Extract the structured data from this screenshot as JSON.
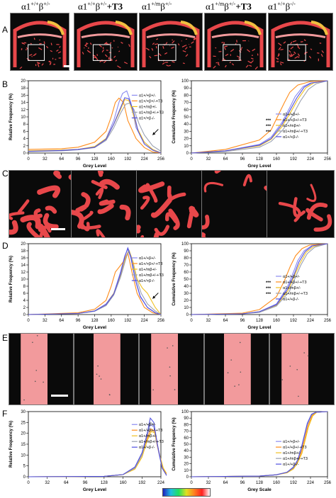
{
  "panel_letters": [
    "A",
    "B",
    "C",
    "D",
    "E",
    "F"
  ],
  "genotype_headers": [
    {
      "base": "α1",
      "sup1": "+/+",
      "mid": "β",
      "sup2": "+/-",
      "suffix": ""
    },
    {
      "base": "α1",
      "sup1": "+/+",
      "mid": "β",
      "sup2": "+/-",
      "suffix": "+T3"
    },
    {
      "base": "α1",
      "sup1": "+/m",
      "mid": "β",
      "sup2": "+/-",
      "suffix": ""
    },
    {
      "base": "α1",
      "sup1": "+/m",
      "mid": "β",
      "sup2": "+/-",
      "suffix": "+T3"
    },
    {
      "base": "α1",
      "sup1": "+/+",
      "mid": "β",
      "sup2": "-/-",
      "suffix": ""
    }
  ],
  "colors": {
    "bone_red": "#e8474a",
    "bone_pink": "#f29a9c",
    "marrow": "#0a0a0a",
    "series": [
      "#8a8af0",
      "#ff8c1a",
      "#f0c020",
      "#9aa0b0",
      "#5050e0"
    ]
  },
  "significance": [
    "***",
    "***",
    "***"
  ],
  "chart_data": [
    {
      "id": "B-left",
      "type": "line",
      "xlabel": "Grey Level",
      "ylabel": "Relative Frequency (%)",
      "ylim": [
        0,
        20
      ],
      "xticks": [
        0,
        32,
        64,
        96,
        128,
        160,
        192,
        224,
        256
      ],
      "yticks": [
        0,
        2,
        4,
        6,
        8,
        10,
        12,
        14,
        16,
        18,
        20
      ],
      "legend": [
        "α1+/+β+/-",
        "α1+/+β+/-+T3",
        "α1+/mβ+/-",
        "α1+/mβ+/-+T3",
        "α1+/+β-/-"
      ],
      "series": [
        {
          "x": [
            0,
            64,
            96,
            128,
            150,
            165,
            175,
            182,
            190,
            198,
            208,
            224,
            240,
            256
          ],
          "y": [
            0.5,
            0.8,
            1,
            1.7,
            4,
            9,
            14,
            16.5,
            17.2,
            14,
            7,
            3,
            1,
            0
          ]
        },
        {
          "x": [
            0,
            64,
            96,
            128,
            150,
            160,
            168,
            175,
            184,
            192,
            208,
            224,
            240,
            256
          ],
          "y": [
            1,
            1.2,
            1.6,
            3,
            6,
            10,
            14,
            15.2,
            14,
            9,
            4,
            1.5,
            0.3,
            0
          ]
        },
        {
          "x": [
            0,
            64,
            96,
            128,
            150,
            165,
            178,
            186,
            194,
            200,
            210,
            224,
            240,
            256
          ],
          "y": [
            0.6,
            0.8,
            1,
            1.8,
            4,
            8,
            12,
            14.8,
            14.5,
            12,
            7,
            3,
            1,
            0
          ]
        },
        {
          "x": [
            0,
            64,
            96,
            128,
            150,
            165,
            178,
            188,
            196,
            204,
            214,
            224,
            240,
            256
          ],
          "y": [
            0.4,
            0.6,
            0.9,
            1.5,
            3.5,
            7,
            11,
            13.5,
            13.8,
            12,
            8,
            5,
            2,
            0.5
          ]
        },
        {
          "x": [
            0,
            64,
            96,
            128,
            150,
            165,
            178,
            186,
            194,
            202,
            212,
            224,
            240,
            256
          ],
          "y": [
            0.5,
            0.7,
            1,
            1.6,
            3.8,
            8,
            12.5,
            15.3,
            15,
            12,
            6,
            2.5,
            0.8,
            0
          ]
        }
      ]
    },
    {
      "id": "B-right",
      "type": "line",
      "xlabel": "Grey Level",
      "ylabel": "Cumulative Frequency (%)",
      "ylim": [
        0,
        100
      ],
      "xticks": [
        0,
        32,
        64,
        96,
        128,
        160,
        192,
        224,
        256
      ],
      "yticks": [
        0,
        10,
        20,
        30,
        40,
        50,
        60,
        70,
        80,
        90,
        100
      ],
      "legend": [
        "α1+/+β+/-",
        "α1+/+β+/-+T3",
        "α1+/mβ+/-",
        "α1+/mβ+/-+T3",
        "α1+/+β-/-"
      ],
      "series": [
        {
          "x": [
            0,
            64,
            128,
            150,
            170,
            185,
            195,
            210,
            224,
            256
          ],
          "y": [
            0,
            3,
            12,
            22,
            42,
            63,
            78,
            92,
            97,
            100
          ]
        },
        {
          "x": [
            0,
            64,
            128,
            150,
            165,
            175,
            185,
            200,
            224,
            256
          ],
          "y": [
            0,
            5,
            18,
            32,
            55,
            70,
            84,
            94,
            99,
            100
          ]
        },
        {
          "x": [
            0,
            64,
            128,
            150,
            170,
            188,
            200,
            215,
            230,
            256
          ],
          "y": [
            0,
            3,
            10,
            19,
            36,
            58,
            74,
            90,
            97,
            100
          ]
        },
        {
          "x": [
            0,
            64,
            128,
            150,
            172,
            192,
            205,
            220,
            235,
            256
          ],
          "y": [
            0,
            2,
            8,
            16,
            32,
            54,
            72,
            88,
            96,
            100
          ]
        },
        {
          "x": [
            0,
            64,
            128,
            150,
            170,
            186,
            198,
            212,
            226,
            256
          ],
          "y": [
            0,
            3,
            11,
            20,
            39,
            60,
            76,
            91,
            97,
            100
          ]
        }
      ]
    },
    {
      "id": "D-left",
      "type": "line",
      "xlabel": "Grey Level",
      "ylabel": "Relative Frequency (%)",
      "ylim": [
        0,
        20
      ],
      "xticks": [
        0,
        32,
        64,
        96,
        128,
        160,
        192,
        224,
        256
      ],
      "yticks": [
        0,
        2,
        4,
        6,
        8,
        10,
        12,
        14,
        16,
        18,
        20
      ],
      "legend": [
        "α1+/+β+/-",
        "α1+/+β+/-+T3",
        "α1+/mβ+/-",
        "α1+/mβ+/-+T3",
        "α1+/+β-/-"
      ],
      "series": [
        {
          "x": [
            0,
            96,
            128,
            150,
            165,
            178,
            186,
            192,
            198,
            206,
            216,
            230,
            245,
            256
          ],
          "y": [
            0,
            0.3,
            1,
            3,
            6,
            12,
            16.5,
            18.5,
            16,
            10,
            5,
            2,
            0.5,
            0
          ]
        },
        {
          "x": [
            0,
            96,
            128,
            150,
            160,
            168,
            176,
            184,
            192,
            200,
            210,
            224,
            240,
            256
          ],
          "y": [
            0,
            0.5,
            1.5,
            4,
            8,
            12,
            13.5,
            15,
            17.5,
            12,
            6,
            2,
            0.5,
            0
          ]
        },
        {
          "x": [
            0,
            96,
            128,
            150,
            165,
            178,
            188,
            195,
            202,
            210,
            220,
            230,
            245,
            256
          ],
          "y": [
            0,
            0.3,
            1,
            2.8,
            6,
            11,
            16,
            18,
            15,
            10,
            7.5,
            6,
            2,
            0
          ]
        },
        {
          "x": [
            0,
            96,
            128,
            150,
            165,
            178,
            188,
            194,
            200,
            208,
            218,
            230,
            245,
            256
          ],
          "y": [
            0,
            0.3,
            0.9,
            2.5,
            5.5,
            10.5,
            15.5,
            18.2,
            15.5,
            10.5,
            6,
            3,
            1,
            0
          ]
        },
        {
          "x": [
            0,
            96,
            128,
            150,
            165,
            178,
            186,
            192,
            198,
            206,
            216,
            230,
            245,
            256
          ],
          "y": [
            0,
            0.3,
            1,
            2.8,
            5.8,
            11.5,
            16.2,
            18.8,
            16.2,
            10.2,
            5.2,
            2,
            0.5,
            0
          ]
        }
      ]
    },
    {
      "id": "D-right",
      "type": "line",
      "xlabel": "Grey Level",
      "ylabel": "Cumulative Frequency (%)",
      "ylim": [
        0,
        100
      ],
      "xticks": [
        0,
        32,
        64,
        96,
        128,
        160,
        192,
        224,
        256
      ],
      "yticks": [
        0,
        10,
        20,
        30,
        40,
        50,
        60,
        70,
        80,
        90,
        100
      ],
      "legend": [
        "α1+/+β+/-",
        "α1+/+β+/-+T3",
        "α1+/mβ+/-",
        "α1+/mβ+/-+T3",
        "α1+/+β-/-"
      ],
      "series": [
        {
          "x": [
            0,
            96,
            128,
            160,
            180,
            192,
            200,
            212,
            226,
            256
          ],
          "y": [
            0,
            1,
            4,
            15,
            38,
            60,
            76,
            90,
            97,
            100
          ]
        },
        {
          "x": [
            0,
            96,
            128,
            160,
            175,
            186,
            196,
            208,
            222,
            256
          ],
          "y": [
            0,
            2,
            7,
            25,
            48,
            68,
            83,
            93,
            98,
            100
          ]
        },
        {
          "x": [
            0,
            96,
            128,
            160,
            182,
            195,
            204,
            216,
            230,
            256
          ],
          "y": [
            0,
            1,
            4,
            13,
            34,
            57,
            72,
            88,
            96,
            100
          ]
        },
        {
          "x": [
            0,
            96,
            128,
            160,
            184,
            197,
            206,
            218,
            232,
            256
          ],
          "y": [
            0,
            1,
            3,
            12,
            32,
            55,
            70,
            86,
            95,
            100
          ]
        },
        {
          "x": [
            0,
            96,
            128,
            160,
            181,
            194,
            202,
            214,
            228,
            256
          ],
          "y": [
            0,
            1,
            4,
            14,
            36,
            58,
            74,
            89,
            97,
            100
          ]
        }
      ]
    },
    {
      "id": "F-left",
      "type": "line",
      "xlabel": "Grey Level",
      "ylabel": "Relative Frequency (%)",
      "ylim": [
        0,
        30
      ],
      "xticks": [
        0,
        32,
        64,
        96,
        128,
        160,
        192,
        224
      ],
      "yticks": [
        0,
        5,
        10,
        15,
        20,
        25,
        30
      ],
      "legend": [
        "α1+/+β+/-",
        "α1+/+β+/-+T3",
        "α1+/mβ+/-",
        "α1+/mβ+/-+T3",
        "α1+/+β-/-"
      ],
      "series": [
        {
          "x": [
            0,
            128,
            160,
            180,
            192,
            200,
            206,
            212,
            218,
            226,
            234,
            250
          ],
          "y": [
            0,
            0.2,
            1,
            4,
            10,
            18,
            24,
            23,
            14,
            4,
            0.5,
            0
          ]
        },
        {
          "x": [
            0,
            128,
            160,
            180,
            192,
            200,
            207,
            213,
            219,
            227,
            235,
            250
          ],
          "y": [
            0,
            0.2,
            1,
            4,
            10,
            17,
            22,
            21,
            13,
            4,
            0.5,
            0
          ]
        },
        {
          "x": [
            0,
            128,
            160,
            180,
            192,
            200,
            208,
            214,
            220,
            228,
            236,
            250
          ],
          "y": [
            0,
            0.2,
            1,
            3.5,
            9,
            16,
            21,
            20,
            12,
            4,
            0.5,
            0
          ]
        },
        {
          "x": [
            0,
            128,
            160,
            180,
            192,
            200,
            206,
            212,
            218,
            226,
            234,
            250
          ],
          "y": [
            0,
            0.2,
            1,
            4,
            10,
            18,
            25,
            24,
            15,
            4,
            0.5,
            0
          ]
        },
        {
          "x": [
            0,
            128,
            160,
            180,
            192,
            200,
            206,
            212,
            218,
            226,
            234,
            250
          ],
          "y": [
            0,
            0.2,
            1,
            4.5,
            11,
            19,
            27,
            25,
            15,
            4,
            0.5,
            0
          ]
        }
      ]
    },
    {
      "id": "F-right",
      "type": "line",
      "xlabel": "Grey Scale",
      "ylabel": "Cumulative Frequency (%)",
      "ylim": [
        0,
        100
      ],
      "xticks": [
        0,
        32,
        64,
        96,
        128,
        160,
        192,
        224,
        256
      ],
      "yticks": [
        0,
        10,
        20,
        30,
        40,
        50,
        60,
        70,
        80,
        90,
        100
      ],
      "legend": [
        "α1+/+β+/-",
        "α1+/+β+/-+T3",
        "α1+/mβ+/-",
        "α1+/mβ+/-+T3",
        "α1+/+β-/-"
      ],
      "series": [
        {
          "x": [
            0,
            128,
            160,
            180,
            192,
            200,
            206,
            212,
            218,
            226,
            234,
            256
          ],
          "y": [
            0,
            1,
            3,
            7,
            14,
            25,
            40,
            60,
            80,
            95,
            99,
            100
          ]
        },
        {
          "x": [
            0,
            128,
            160,
            180,
            192,
            200,
            207,
            213,
            219,
            227,
            235,
            256
          ],
          "y": [
            0,
            1,
            3,
            7,
            13,
            23,
            38,
            58,
            78,
            94,
            99,
            100
          ]
        },
        {
          "x": [
            0,
            128,
            160,
            180,
            192,
            200,
            208,
            214,
            220,
            228,
            236,
            256
          ],
          "y": [
            0,
            1,
            3,
            6,
            12,
            22,
            36,
            56,
            76,
            93,
            99,
            100
          ]
        },
        {
          "x": [
            0,
            128,
            160,
            180,
            192,
            200,
            206,
            212,
            218,
            226,
            234,
            256
          ],
          "y": [
            0,
            1,
            3,
            7,
            14,
            25,
            41,
            61,
            81,
            95,
            99,
            100
          ]
        },
        {
          "x": [
            0,
            128,
            160,
            180,
            192,
            200,
            206,
            212,
            218,
            226,
            234,
            256
          ],
          "y": [
            0,
            1,
            3,
            7,
            15,
            26,
            42,
            62,
            82,
            96,
            99,
            100
          ]
        }
      ]
    }
  ]
}
